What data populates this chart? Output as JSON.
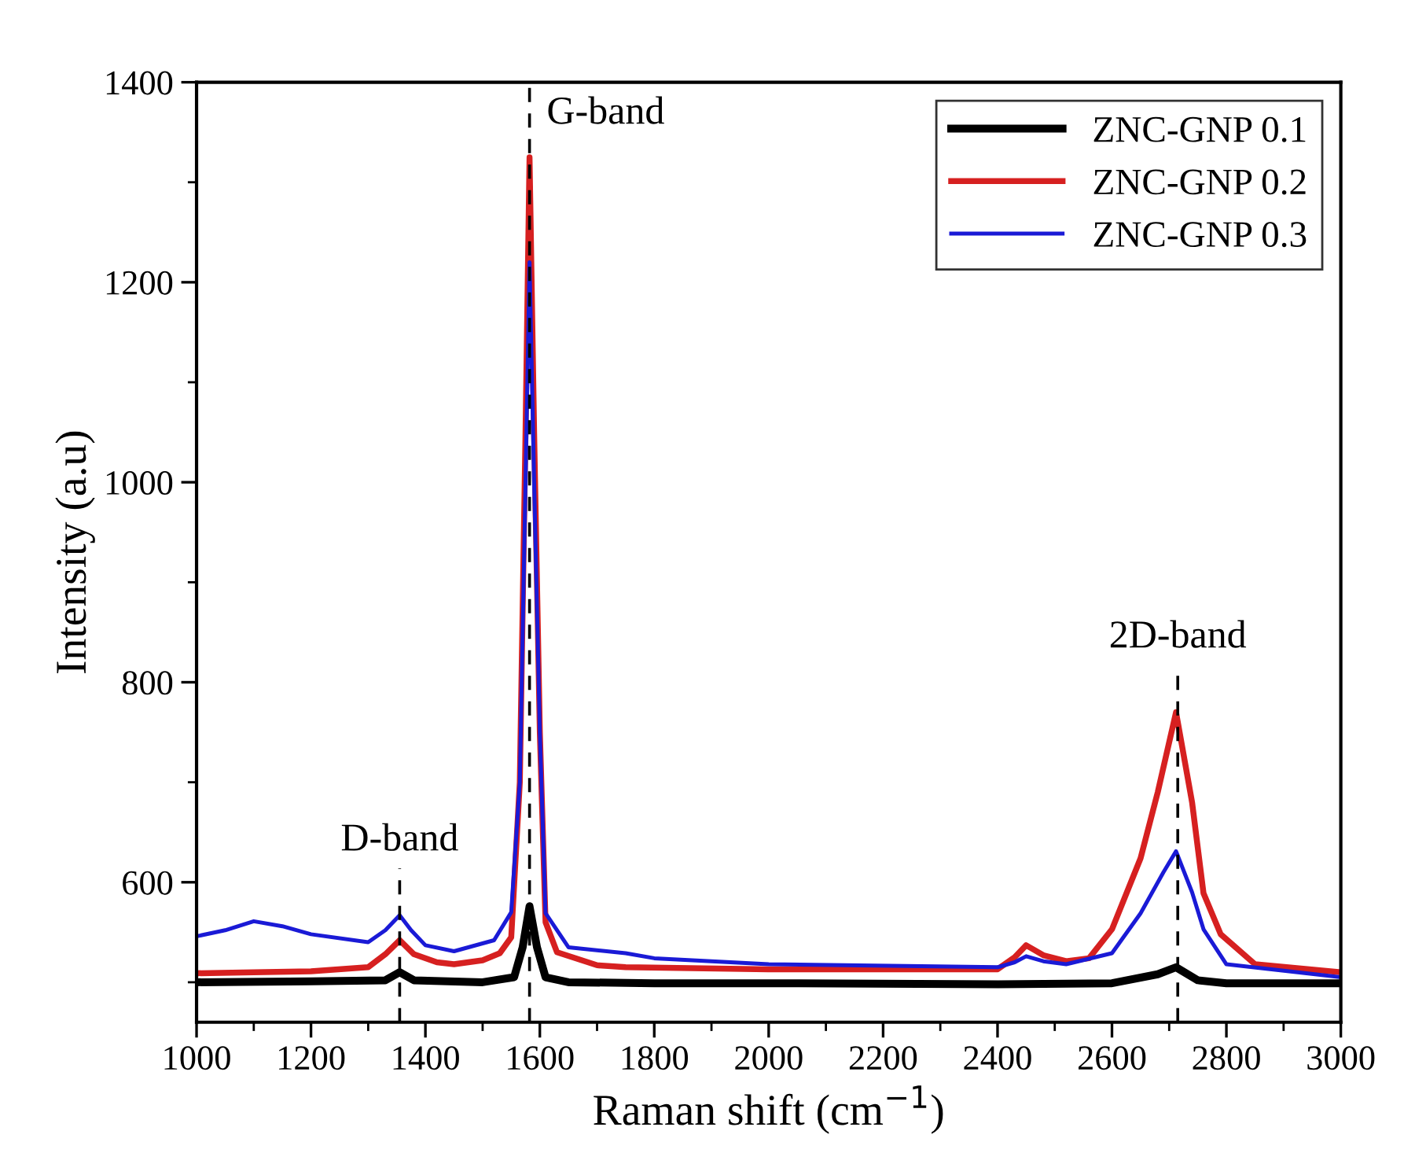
{
  "chart_data": {
    "type": "line",
    "xlabel": "Raman shift (cm$^{−1}$)",
    "ylabel": "Intensity (a.u)",
    "xlim": [
      1000,
      3000
    ],
    "xticks": [
      1000,
      1200,
      1400,
      1600,
      1800,
      2000,
      2200,
      2400,
      2600,
      2800,
      3000
    ],
    "ylim": [
      460,
      1400
    ],
    "yticks": [
      600,
      800,
      1000,
      1200,
      1400
    ],
    "grid": false,
    "legend": "top right",
    "line_style": "solid",
    "ref_lines": [
      {
        "axis": "x",
        "value": 1355,
        "label": "D-band",
        "line_style": "dashed",
        "color": "#000000"
      },
      {
        "axis": "x",
        "value": 1582,
        "label": "G-band",
        "line_style": "dashed",
        "color": "#000000"
      },
      {
        "axis": "x",
        "value": 2715,
        "label": "2D-band",
        "line_style": "dashed",
        "color": "#000000"
      }
    ],
    "series": [
      {
        "name": "ZNC-GNP 0.1",
        "color": "#000000",
        "x": [
          1000,
          1200,
          1330,
          1355,
          1380,
          1500,
          1555,
          1570,
          1582,
          1595,
          1610,
          1650,
          1800,
          2000,
          2400,
          2600,
          2680,
          2712,
          2750,
          2800,
          3000
        ],
        "values": [
          500,
          501,
          502,
          510,
          502,
          500,
          505,
          535,
          576,
          535,
          505,
          500,
          499,
          499,
          498,
          499,
          508,
          515,
          502,
          499,
          499
        ]
      },
      {
        "name": "ZNC-GNP 0.2",
        "color": "#d62020",
        "x": [
          1000,
          1100,
          1200,
          1300,
          1330,
          1355,
          1380,
          1420,
          1450,
          1500,
          1530,
          1550,
          1565,
          1575,
          1582,
          1590,
          1600,
          1610,
          1630,
          1700,
          1750,
          2000,
          2400,
          2430,
          2450,
          2480,
          2520,
          2560,
          2600,
          2650,
          2680,
          2712,
          2740,
          2760,
          2790,
          2850,
          3000
        ],
        "values": [
          509,
          510,
          511,
          515,
          528,
          542,
          528,
          520,
          518,
          522,
          529,
          545,
          700,
          1050,
          1325,
          1050,
          750,
          560,
          530,
          517,
          515,
          513,
          513,
          525,
          537,
          527,
          521,
          524,
          553,
          624,
          690,
          770,
          680,
          589,
          548,
          518,
          510
        ]
      },
      {
        "name": "ZNC-GNP 0.3",
        "color": "#1a1ad6",
        "x": [
          1000,
          1050,
          1100,
          1150,
          1200,
          1300,
          1330,
          1355,
          1375,
          1400,
          1450,
          1520,
          1550,
          1565,
          1575,
          1582,
          1590,
          1600,
          1610,
          1650,
          1750,
          1800,
          2000,
          2400,
          2430,
          2450,
          2480,
          2520,
          2600,
          2650,
          2690,
          2712,
          2740,
          2760,
          2800,
          3000
        ],
        "values": [
          546,
          552,
          561,
          556,
          548,
          540,
          552,
          567,
          552,
          537,
          531,
          542,
          570,
          700,
          1000,
          1220,
          1000,
          750,
          569,
          535,
          529,
          524,
          518,
          515,
          520,
          526,
          521,
          518,
          529,
          569,
          610,
          631,
          590,
          553,
          518,
          505
        ]
      }
    ]
  }
}
